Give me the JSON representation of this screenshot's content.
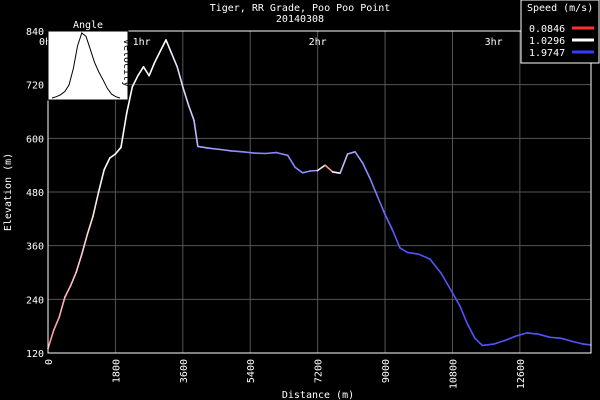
{
  "chart_data": {
    "type": "line",
    "title": "Tiger, RR Grade, Poo Poo Point",
    "subtitle": "20140308",
    "xlabel": "Distance (m)",
    "ylabel": "Elevation (m)",
    "xlim": [
      0,
      14500
    ],
    "ylim": [
      120,
      840
    ],
    "x_ticks": [
      0,
      1800,
      3600,
      5400,
      7200,
      9000,
      10800,
      12600
    ],
    "y_ticks": [
      120,
      240,
      360,
      480,
      600,
      720,
      840
    ],
    "time_ticks": [
      {
        "label": "0hr",
        "x": 0
      },
      {
        "label": "1hr",
        "x": 2500
      },
      {
        "label": "2hr",
        "x": 7200
      },
      {
        "label": "3hr",
        "x": 11900
      }
    ],
    "grid": true,
    "legend": {
      "title": "Speed (m/s)",
      "placement": "top-right",
      "entries": [
        {
          "label": "0.0846",
          "color": "#ff3030"
        },
        {
          "label": "1.0296",
          "color": "#ffffff"
        },
        {
          "label": "1.9747",
          "color": "#3a3aff"
        }
      ]
    },
    "color_scale": {
      "min_speed": 0.0846,
      "mid_speed": 1.0296,
      "max_speed": 1.9747
    },
    "inset": {
      "title": "Angle",
      "side_label": "Velocity",
      "values": [
        0.0,
        0.02,
        0.05,
        0.1,
        0.2,
        0.45,
        0.8,
        1.0,
        0.95,
        0.75,
        0.55,
        0.4,
        0.28,
        0.15,
        0.06,
        0.02,
        0.0
      ]
    },
    "series": [
      {
        "points": [
          [
            0,
            130,
            0.55
          ],
          [
            150,
            170,
            0.6
          ],
          [
            300,
            200,
            0.65
          ],
          [
            450,
            245,
            0.7
          ],
          [
            600,
            270,
            0.72
          ],
          [
            750,
            300,
            0.78
          ],
          [
            900,
            340,
            0.8
          ],
          [
            1050,
            385,
            0.85
          ],
          [
            1200,
            425,
            0.9
          ],
          [
            1350,
            480,
            0.95
          ],
          [
            1500,
            530,
            1.0
          ],
          [
            1650,
            556,
            1.02
          ],
          [
            1800,
            565,
            1.0
          ],
          [
            1950,
            580,
            1.05
          ],
          [
            2100,
            655,
            1.03
          ],
          [
            2250,
            715,
            1.03
          ],
          [
            2400,
            740,
            1.03
          ],
          [
            2550,
            760,
            1.03
          ],
          [
            2700,
            740,
            1.03
          ],
          [
            2850,
            770,
            1.03
          ],
          [
            3000,
            795,
            1.03
          ],
          [
            3150,
            820,
            1.03
          ],
          [
            3300,
            790,
            1.1
          ],
          [
            3450,
            760,
            1.2
          ],
          [
            3600,
            715,
            1.2
          ],
          [
            3750,
            675,
            1.25
          ],
          [
            3900,
            640,
            1.3
          ],
          [
            4000,
            582,
            1.4
          ],
          [
            4300,
            578,
            1.5
          ],
          [
            4600,
            575,
            1.5
          ],
          [
            4900,
            572,
            1.55
          ],
          [
            5200,
            570,
            1.6
          ],
          [
            5500,
            567,
            1.6
          ],
          [
            5800,
            566,
            1.6
          ],
          [
            6100,
            568,
            1.6
          ],
          [
            6400,
            562,
            1.6
          ],
          [
            6600,
            535,
            1.6
          ],
          [
            6800,
            523,
            1.6
          ],
          [
            7000,
            527,
            1.55
          ],
          [
            7200,
            528,
            1.5
          ],
          [
            7400,
            540,
            0.3
          ],
          [
            7600,
            525,
            0.8
          ],
          [
            7800,
            522,
            1.3
          ],
          [
            8000,
            565,
            1.4
          ],
          [
            8200,
            570,
            1.5
          ],
          [
            8400,
            545,
            1.55
          ],
          [
            8600,
            510,
            1.6
          ],
          [
            8800,
            470,
            1.7
          ],
          [
            9000,
            430,
            1.75
          ],
          [
            9200,
            395,
            1.8
          ],
          [
            9400,
            355,
            1.85
          ],
          [
            9600,
            345,
            1.85
          ],
          [
            9900,
            341,
            1.85
          ],
          [
            10200,
            330,
            1.85
          ],
          [
            10500,
            298,
            1.85
          ],
          [
            10800,
            255,
            1.85
          ],
          [
            11000,
            225,
            1.85
          ],
          [
            11200,
            185,
            1.85
          ],
          [
            11400,
            153,
            1.85
          ],
          [
            11600,
            137,
            1.85
          ],
          [
            11900,
            140,
            1.85
          ],
          [
            12200,
            148,
            1.85
          ],
          [
            12500,
            158,
            1.85
          ],
          [
            12800,
            165,
            1.85
          ],
          [
            13100,
            162,
            1.85
          ],
          [
            13400,
            155,
            1.85
          ],
          [
            13700,
            153,
            1.85
          ],
          [
            14000,
            146,
            1.85
          ],
          [
            14300,
            140,
            1.85
          ],
          [
            14500,
            138,
            1.85
          ]
        ]
      }
    ]
  }
}
